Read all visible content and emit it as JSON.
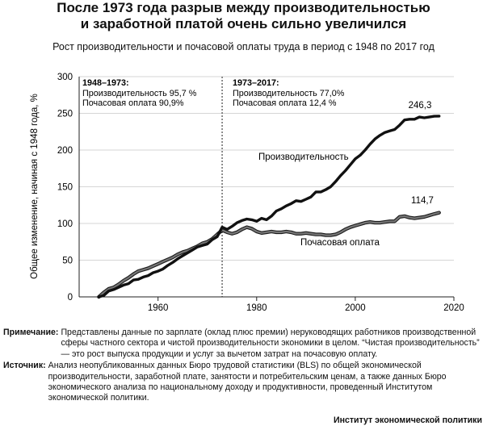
{
  "header": {
    "title_line1": "После 1973 года разрыв между производительностью",
    "title_line2": "и заработной платой очень сильно увеличился",
    "subtitle": "Рост производительности и почасовой оплаты труда в период с 1948 по 2017 год"
  },
  "chart_data": {
    "type": "line",
    "ylabel": "Общее изменение, начиная с 1948 года, %",
    "xlabel": "",
    "xlim": [
      1944,
      2020
    ],
    "ylim": [
      0,
      300
    ],
    "x_ticks": [
      1960,
      1980,
      2000,
      2020
    ],
    "y_ticks": [
      0,
      50,
      100,
      150,
      200,
      250,
      300
    ],
    "grid": "horizontal",
    "divider_year": 1973,
    "period_labels": [
      {
        "title": "1948–1973:",
        "line1": "Производительность 95,7 %",
        "line2": "Почасовая оплата 90,9%"
      },
      {
        "title": "1973–2017:",
        "line1": "Производительность 77,0%",
        "line2": "Почасовая оплата 12,4 %"
      }
    ],
    "series": [
      {
        "name": "Производительность",
        "color": "#111111",
        "end_label": "246,3",
        "x": [
          1948,
          1949,
          1950,
          1951,
          1952,
          1953,
          1954,
          1955,
          1956,
          1957,
          1958,
          1959,
          1960,
          1961,
          1962,
          1963,
          1964,
          1965,
          1966,
          1967,
          1968,
          1969,
          1970,
          1971,
          1972,
          1973,
          1974,
          1975,
          1976,
          1977,
          1978,
          1979,
          1980,
          1981,
          1982,
          1983,
          1984,
          1985,
          1986,
          1987,
          1988,
          1989,
          1990,
          1991,
          1992,
          1993,
          1994,
          1995,
          1996,
          1997,
          1998,
          1999,
          2000,
          2001,
          2002,
          2003,
          2004,
          2005,
          2006,
          2007,
          2008,
          2009,
          2010,
          2011,
          2012,
          2013,
          2014,
          2015,
          2016,
          2017
        ],
        "values": [
          0,
          2,
          8,
          10,
          13,
          16,
          18,
          23,
          24,
          27,
          29,
          33,
          35,
          38,
          43,
          47,
          52,
          56,
          60,
          64,
          68,
          70,
          72,
          78,
          82,
          95,
          92,
          96,
          101,
          104,
          106,
          105,
          103,
          107,
          105,
          110,
          117,
          120,
          124,
          127,
          131,
          130,
          133,
          136,
          143,
          143,
          146,
          150,
          157,
          165,
          172,
          180,
          188,
          193,
          200,
          208,
          215,
          220,
          224,
          226,
          228,
          234,
          241,
          242,
          242,
          245,
          244,
          245,
          246,
          246.3
        ]
      },
      {
        "name": "Почасовая оплата",
        "color": "#777777",
        "end_label": "114,7",
        "x": [
          1948,
          1949,
          1950,
          1951,
          1952,
          1953,
          1954,
          1955,
          1956,
          1957,
          1958,
          1959,
          1960,
          1961,
          1962,
          1963,
          1964,
          1965,
          1966,
          1967,
          1968,
          1969,
          1970,
          1971,
          1972,
          1973,
          1974,
          1975,
          1976,
          1977,
          1978,
          1979,
          1980,
          1981,
          1982,
          1983,
          1984,
          1985,
          1986,
          1987,
          1988,
          1989,
          1990,
          1991,
          1992,
          1993,
          1994,
          1995,
          1996,
          1997,
          1998,
          1999,
          2000,
          2001,
          2002,
          2003,
          2004,
          2005,
          2006,
          2007,
          2008,
          2009,
          2010,
          2011,
          2012,
          2013,
          2014,
          2015,
          2016,
          2017
        ],
        "values": [
          0,
          6,
          11,
          13,
          17,
          22,
          26,
          31,
          35,
          37,
          39,
          42,
          45,
          48,
          51,
          54,
          58,
          61,
          63,
          66,
          69,
          73,
          75,
          79,
          85,
          90.9,
          88,
          86,
          88,
          92,
          95,
          93,
          89,
          87,
          88,
          89,
          88,
          88,
          89,
          88,
          86,
          86,
          87,
          86,
          85,
          85,
          84,
          84,
          85,
          88,
          92,
          95,
          97,
          99,
          101,
          102,
          101,
          101,
          102,
          103,
          103,
          109,
          110,
          108,
          107,
          108,
          109,
          111,
          113,
          114.7
        ]
      }
    ]
  },
  "notes": {
    "note_label": "Примечание:",
    "note_text": "Представлены данные по зарплате (оклад плюс премии) неруководящих работников производственной сферы частного сектора и чистой производительности экономики в целом. “Чистая производительность” — это рост выпуска продукции и услуг за вычетом затрат на почасовую оплату.",
    "source_label": "Источник:",
    "source_text": "Анализ неопубликованных данных Бюро трудовой статистики (BLS) по общей экономической производительности, заработной плате, занятости и потребительским ценам, а также данных Бюро экономического анализа по национальному доходу и продуктивности, проведенный Институтом экономической политики."
  },
  "footer": {
    "credit": "Институт экономической политики"
  }
}
